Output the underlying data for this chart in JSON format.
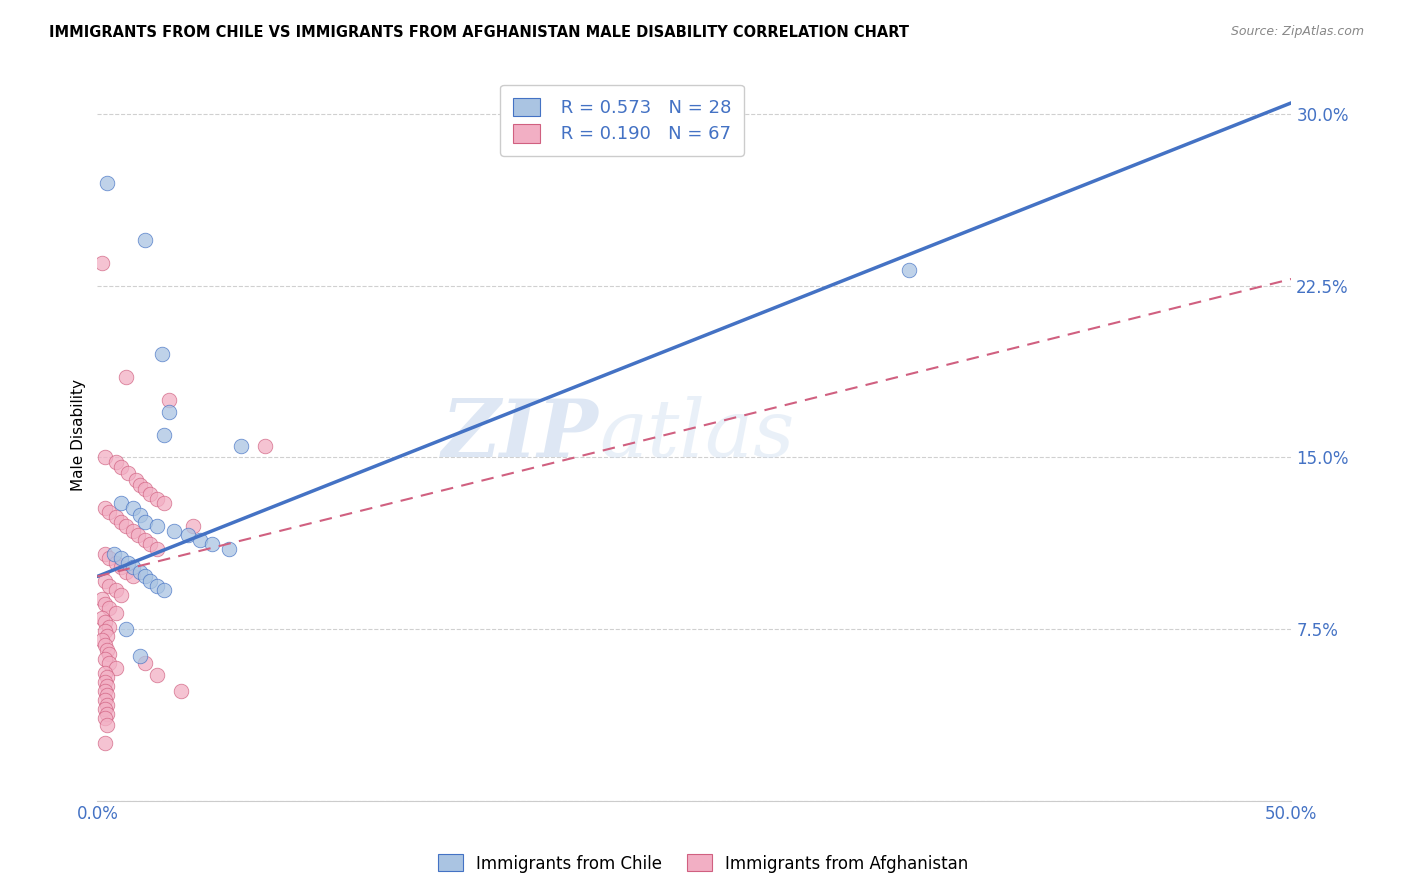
{
  "title": "IMMIGRANTS FROM CHILE VS IMMIGRANTS FROM AFGHANISTAN MALE DISABILITY CORRELATION CHART",
  "source": "Source: ZipAtlas.com",
  "ylabel": "Male Disability",
  "xlim": [
    0.0,
    0.5
  ],
  "ylim": [
    0.0,
    0.32
  ],
  "xticks": [
    0.0,
    0.1,
    0.2,
    0.3,
    0.4,
    0.5
  ],
  "yticks": [
    0.0,
    0.075,
    0.15,
    0.225,
    0.3
  ],
  "watermark": "ZIPatlas",
  "legend_r1": "R = 0.573",
  "legend_n1": "N = 28",
  "legend_r2": "R = 0.190",
  "legend_n2": "N = 67",
  "color_chile": "#aac4e2",
  "color_afghanistan": "#f2afc4",
  "line_color_chile": "#4472c4",
  "line_color_afghanistan": "#d06080",
  "grid_color": "#d0d0d0",
  "chile_line": [
    [
      0.0,
      0.098
    ],
    [
      0.5,
      0.305
    ]
  ],
  "afghanistan_line": [
    [
      0.0,
      0.098
    ],
    [
      0.5,
      0.228
    ]
  ],
  "chile_points": [
    [
      0.004,
      0.27
    ],
    [
      0.02,
      0.245
    ],
    [
      0.027,
      0.195
    ],
    [
      0.03,
      0.17
    ],
    [
      0.028,
      0.16
    ],
    [
      0.06,
      0.155
    ],
    [
      0.01,
      0.13
    ],
    [
      0.015,
      0.128
    ],
    [
      0.018,
      0.125
    ],
    [
      0.02,
      0.122
    ],
    [
      0.025,
      0.12
    ],
    [
      0.032,
      0.118
    ],
    [
      0.038,
      0.116
    ],
    [
      0.043,
      0.114
    ],
    [
      0.048,
      0.112
    ],
    [
      0.055,
      0.11
    ],
    [
      0.007,
      0.108
    ],
    [
      0.01,
      0.106
    ],
    [
      0.013,
      0.104
    ],
    [
      0.015,
      0.102
    ],
    [
      0.018,
      0.1
    ],
    [
      0.02,
      0.098
    ],
    [
      0.022,
      0.096
    ],
    [
      0.025,
      0.094
    ],
    [
      0.028,
      0.092
    ],
    [
      0.012,
      0.075
    ],
    [
      0.018,
      0.063
    ],
    [
      0.34,
      0.232
    ]
  ],
  "afghanistan_points": [
    [
      0.002,
      0.235
    ],
    [
      0.012,
      0.185
    ],
    [
      0.03,
      0.175
    ],
    [
      0.07,
      0.155
    ],
    [
      0.003,
      0.15
    ],
    [
      0.008,
      0.148
    ],
    [
      0.01,
      0.146
    ],
    [
      0.013,
      0.143
    ],
    [
      0.016,
      0.14
    ],
    [
      0.018,
      0.138
    ],
    [
      0.02,
      0.136
    ],
    [
      0.022,
      0.134
    ],
    [
      0.025,
      0.132
    ],
    [
      0.028,
      0.13
    ],
    [
      0.003,
      0.128
    ],
    [
      0.005,
      0.126
    ],
    [
      0.008,
      0.124
    ],
    [
      0.01,
      0.122
    ],
    [
      0.012,
      0.12
    ],
    [
      0.015,
      0.118
    ],
    [
      0.017,
      0.116
    ],
    [
      0.02,
      0.114
    ],
    [
      0.022,
      0.112
    ],
    [
      0.025,
      0.11
    ],
    [
      0.003,
      0.108
    ],
    [
      0.005,
      0.106
    ],
    [
      0.008,
      0.104
    ],
    [
      0.01,
      0.102
    ],
    [
      0.012,
      0.1
    ],
    [
      0.015,
      0.098
    ],
    [
      0.003,
      0.096
    ],
    [
      0.005,
      0.094
    ],
    [
      0.008,
      0.092
    ],
    [
      0.01,
      0.09
    ],
    [
      0.002,
      0.088
    ],
    [
      0.003,
      0.086
    ],
    [
      0.005,
      0.084
    ],
    [
      0.008,
      0.082
    ],
    [
      0.002,
      0.08
    ],
    [
      0.003,
      0.078
    ],
    [
      0.005,
      0.076
    ],
    [
      0.003,
      0.074
    ],
    [
      0.004,
      0.072
    ],
    [
      0.002,
      0.07
    ],
    [
      0.003,
      0.068
    ],
    [
      0.004,
      0.066
    ],
    [
      0.005,
      0.064
    ],
    [
      0.003,
      0.062
    ],
    [
      0.005,
      0.06
    ],
    [
      0.008,
      0.058
    ],
    [
      0.003,
      0.056
    ],
    [
      0.004,
      0.054
    ],
    [
      0.003,
      0.052
    ],
    [
      0.004,
      0.05
    ],
    [
      0.003,
      0.048
    ],
    [
      0.004,
      0.046
    ],
    [
      0.003,
      0.044
    ],
    [
      0.004,
      0.042
    ],
    [
      0.003,
      0.04
    ],
    [
      0.004,
      0.038
    ],
    [
      0.003,
      0.036
    ],
    [
      0.004,
      0.033
    ],
    [
      0.04,
      0.12
    ],
    [
      0.003,
      0.025
    ],
    [
      0.02,
      0.06
    ],
    [
      0.025,
      0.055
    ],
    [
      0.035,
      0.048
    ]
  ]
}
